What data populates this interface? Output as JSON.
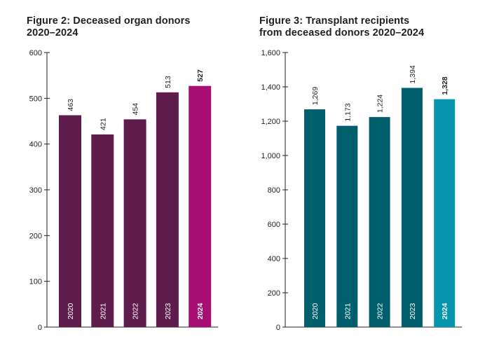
{
  "chart_data": [
    {
      "type": "bar",
      "title": "Figure 2: Deceased organ donors\n2020–2024",
      "categories": [
        "2020",
        "2021",
        "2022",
        "2023",
        "2024"
      ],
      "values": [
        463,
        421,
        454,
        513,
        527
      ],
      "value_labels": [
        "463",
        "421",
        "454",
        "513",
        "527"
      ],
      "ylim": [
        0,
        600
      ],
      "yticks": [
        0,
        100,
        200,
        300,
        400,
        500,
        600
      ],
      "ytick_labels": [
        "0",
        "100",
        "200",
        "300",
        "400",
        "500",
        "600"
      ],
      "xlabel": "",
      "ylabel": "",
      "highlight_index": 4,
      "colors": {
        "bar": "#5e1d4c",
        "highlight": "#a80d72"
      }
    },
    {
      "type": "bar",
      "title": "Figure 3: Transplant recipients\nfrom deceased donors 2020–2024",
      "categories": [
        "2020",
        "2021",
        "2022",
        "2023",
        "2024"
      ],
      "values": [
        1269,
        1173,
        1224,
        1394,
        1328
      ],
      "value_labels": [
        "1,269",
        "1,173",
        "1,224",
        "1,394",
        "1,328"
      ],
      "ylim": [
        0,
        1600
      ],
      "yticks": [
        0,
        200,
        400,
        600,
        800,
        1000,
        1200,
        1400,
        1600
      ],
      "ytick_labels": [
        "0",
        "200",
        "400",
        "600",
        "800",
        "1,000",
        "1,200",
        "1,400",
        "1,600"
      ],
      "xlabel": "",
      "ylabel": "",
      "highlight_index": 4,
      "colors": {
        "bar": "#005f6c",
        "highlight": "#0596ae"
      }
    }
  ]
}
